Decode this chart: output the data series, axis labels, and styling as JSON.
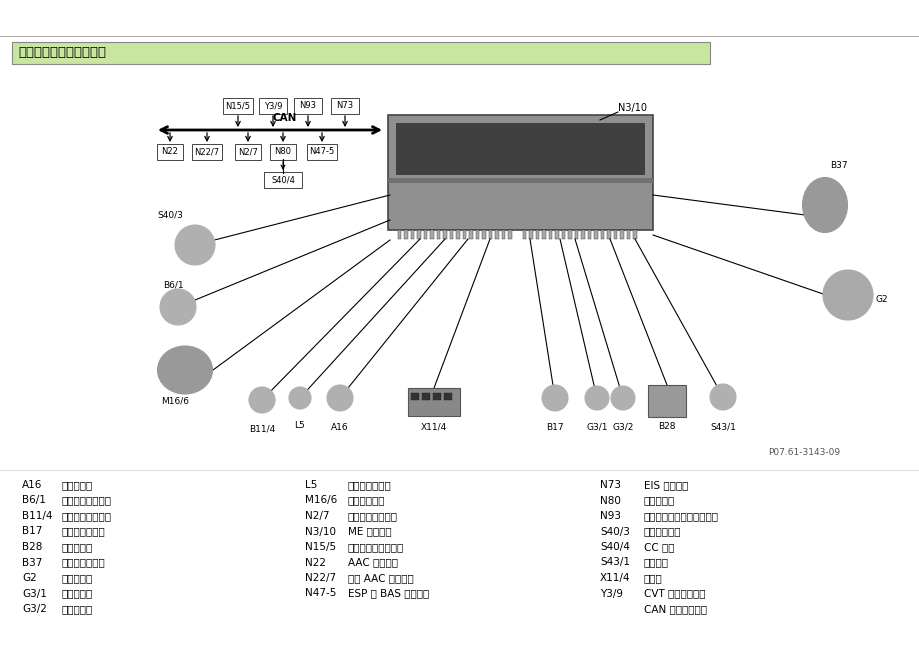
{
  "title": "发动机控制单元输入信号",
  "background_color": "#ffffff",
  "title_box_color": "#c8e6a0",
  "title_font_size": 10,
  "legend_items_col1": [
    [
      "A16",
      "爆震传感器"
    ],
    [
      "B6/1",
      "凸轮轴位置传感器"
    ],
    [
      "B11/4",
      "冷却液温度传感器"
    ],
    [
      "B17",
      "进气温度传感器"
    ],
    [
      "B28",
      "压力传感器"
    ],
    [
      "B37",
      "加速踏板传感器"
    ],
    [
      "G2",
      "交流发电机"
    ],
    [
      "G3/1",
      "后氧传感器"
    ],
    [
      "G3/2",
      "前氧传感器"
    ]
  ],
  "legend_items_col2": [
    [
      "L5",
      "曲轴位置传感器"
    ],
    [
      "M16/6",
      "节气门体总成"
    ],
    [
      "N2/7",
      "约束系统控制模块"
    ],
    [
      "N3/10",
      "ME 控制单元"
    ],
    [
      "N15/5",
      "电子选择杆控制模块"
    ],
    [
      "N22",
      "AAC 控制模块"
    ],
    [
      "N22/7",
      "舒适 AAC 控制模块"
    ],
    [
      "N47-5",
      "ESP 和 BAS 控制单元"
    ]
  ],
  "legend_items_col3": [
    [
      "N73",
      "EIS 控制单元"
    ],
    [
      "N80",
      "转向柱模块"
    ],
    [
      "N93",
      "中央控制模块（中央网关）"
    ],
    [
      "S40/3",
      "离合踏板开关"
    ],
    [
      "S40/4",
      "CC 按钮"
    ],
    [
      "S43/1",
      "油压开关"
    ],
    [
      "X11/4",
      "诊断座"
    ],
    [
      "Y3/9",
      "CVT 电子控制模块"
    ],
    [
      "",
      "CAN 局域网络控制"
    ]
  ],
  "ref_number": "P07.61-3143-09",
  "can_label": "CAN"
}
